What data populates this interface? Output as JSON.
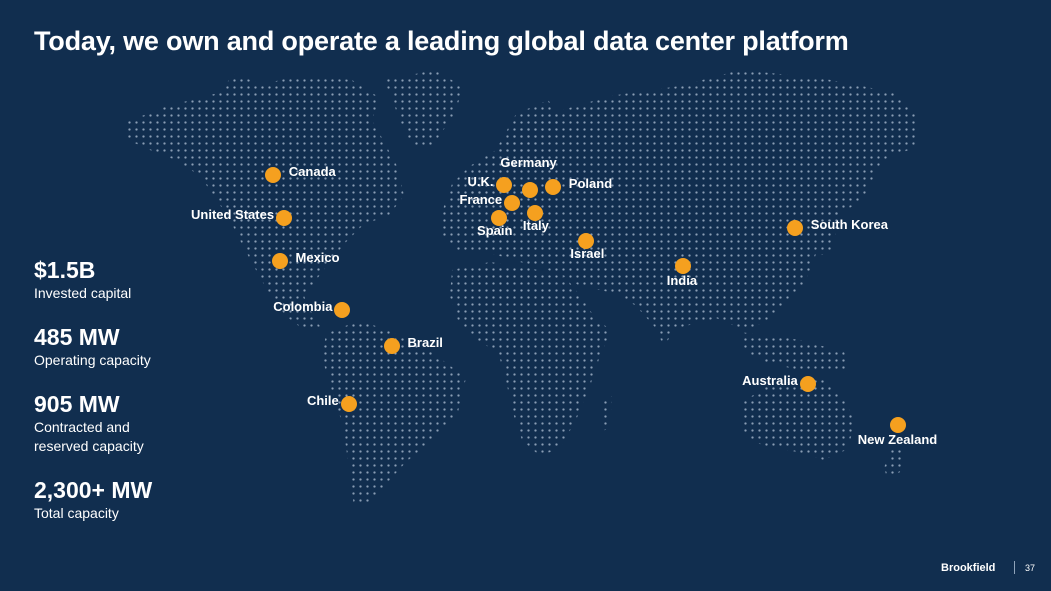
{
  "title": "Today, we own and operate a leading global data center platform",
  "colors": {
    "background": "#112e4f",
    "marker": "#f5a01f",
    "map_dots": "#8a9db4"
  },
  "stats": [
    {
      "value": "$1.5B",
      "label": "Invested capital"
    },
    {
      "value": "485 MW",
      "label": "Operating capacity"
    },
    {
      "value": "905 MW",
      "label": "Contracted and reserved capacity"
    },
    {
      "value": "2,300+ MW",
      "label": "Total capacity"
    }
  ],
  "locations": [
    {
      "name": "Canada",
      "lat": 57,
      "lon": -105
    },
    {
      "name": "United States",
      "lat": 40,
      "lon": -100
    },
    {
      "name": "Mexico",
      "lat": 23,
      "lon": -102
    },
    {
      "name": "Colombia",
      "lat": 4,
      "lon": -74
    },
    {
      "name": "Brazil",
      "lat": -10,
      "lon": -52
    },
    {
      "name": "Chile",
      "lat": -33,
      "lon": -71
    },
    {
      "name": "U.K.",
      "lat": 53,
      "lon": -2
    },
    {
      "name": "Germany",
      "lat": 51,
      "lon": 10
    },
    {
      "name": "Poland",
      "lat": 52,
      "lon": 20
    },
    {
      "name": "France",
      "lat": 46,
      "lon": 2
    },
    {
      "name": "Spain",
      "lat": 40,
      "lon": -4
    },
    {
      "name": "Italy",
      "lat": 42,
      "lon": 12
    },
    {
      "name": "Israel",
      "lat": 31,
      "lon": 35
    },
    {
      "name": "India",
      "lat": 21,
      "lon": 78
    },
    {
      "name": "South Korea",
      "lat": 36,
      "lon": 128
    },
    {
      "name": "Australia",
      "lat": -25,
      "lon": 134
    },
    {
      "name": "New Zealand",
      "lat": -41,
      "lon": 174
    }
  ],
  "footer": {
    "brand": "Brookfield",
    "page": "37"
  }
}
